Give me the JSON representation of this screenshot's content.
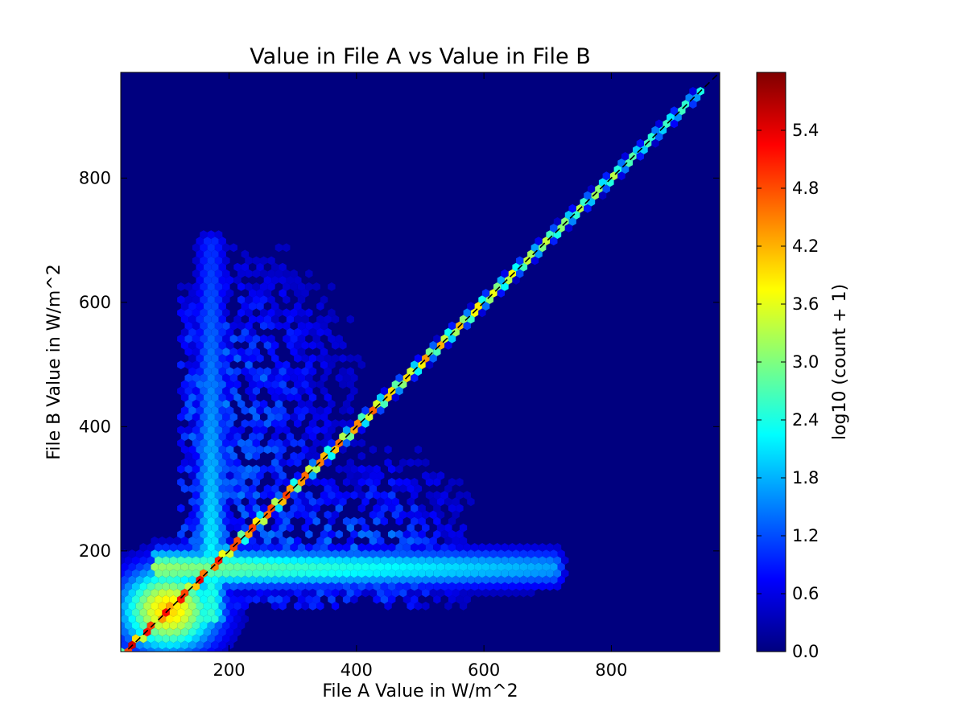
{
  "chart_data": {
    "type": "heatmap",
    "subtype": "hexbin",
    "title": "Value in File A vs Value in File B",
    "xlabel": "File A Value in W/m^2",
    "ylabel": "File B Value in W/m^2",
    "xlim": [
      30,
      970
    ],
    "ylim": [
      38,
      970
    ],
    "xticks": [
      200,
      400,
      600,
      800
    ],
    "yticks": [
      200,
      400,
      600,
      800
    ],
    "colorbar": {
      "label": "log10 (count + 1)",
      "range": [
        0.0,
        6.0
      ],
      "ticks": [
        "0.0",
        "0.6",
        "1.2",
        "1.8",
        "2.4",
        "3.0",
        "3.6",
        "4.2",
        "4.8",
        "5.4"
      ],
      "colormap": "jet"
    },
    "background_value": 0.0,
    "reference_line": {
      "style": "dashed",
      "color": "#000000",
      "from": [
        30,
        30
      ],
      "to": [
        970,
        970
      ]
    },
    "features": [
      {
        "name": "diagonal ridge",
        "x_range": [
          40,
          940
        ],
        "peak_log10": 5.6,
        "note": "values 5.2-5.6 for x<300, 4.0-4.6 for 300-550, 3.0-3.8 for 550-800, 2.0-3.0 above 800"
      },
      {
        "name": "low-value core",
        "x_center": 110,
        "y_center": 110,
        "peak_log10": 4.0
      },
      {
        "name": "horizontal plume",
        "y_center": 170,
        "x_range": [
          100,
          710
        ],
        "peak_log10": 3.2
      },
      {
        "name": "vertical plume",
        "x_center": 175,
        "y_range": [
          100,
          700
        ],
        "peak_log10": 2.6
      },
      {
        "name": "upper-left scatter",
        "x_range": [
          130,
          460
        ],
        "y_range": [
          200,
          720
        ],
        "peak_log10": 1.4
      },
      {
        "name": "lower-right scatter",
        "x_range": [
          250,
          610
        ],
        "y_range": [
          110,
          440
        ],
        "peak_log10": 1.4
      }
    ]
  },
  "colors": {
    "background": "#ffffff",
    "plot_background": "#00007f",
    "jet_stops": [
      "#00007f",
      "#0000ff",
      "#007fff",
      "#00ffff",
      "#7fff7f",
      "#ffff00",
      "#ff7f00",
      "#ff0000",
      "#7f0000"
    ]
  }
}
